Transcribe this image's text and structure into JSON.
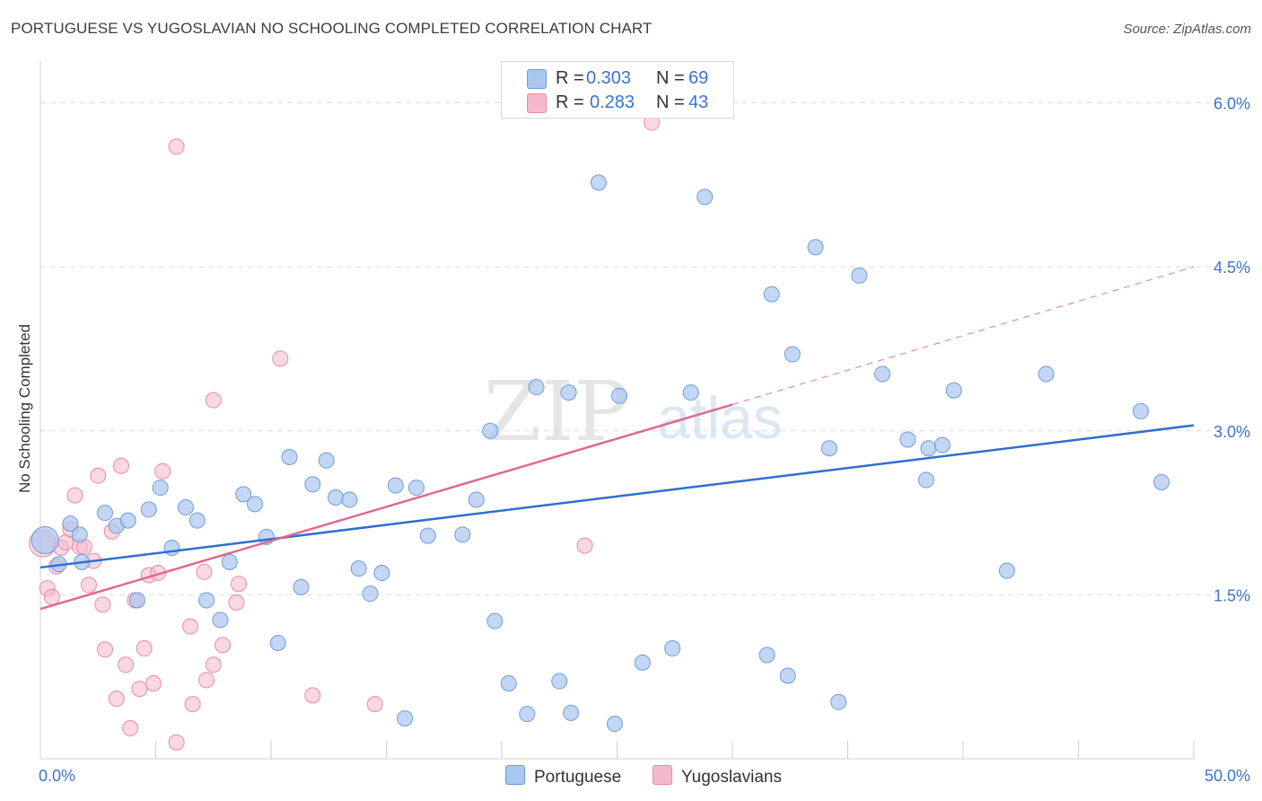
{
  "header": {
    "title": "PORTUGUESE VS YUGOSLAVIAN NO SCHOOLING COMPLETED CORRELATION CHART",
    "source": "Source: ZipAtlas.com"
  },
  "legend": {
    "rows": [
      {
        "r_label": "R =",
        "r_value": "0.303",
        "n_label": "N =",
        "n_value": "69",
        "color": "#a9c6f0"
      },
      {
        "r_label": "R =",
        "r_value": "0.283",
        "n_label": "N =",
        "n_value": "43",
        "color": "#f6b8cb"
      }
    ]
  },
  "bottom_legend": {
    "portuguese": "Portuguese",
    "yugoslavians": "Yugoslavians"
  },
  "watermark": {
    "zip": "ZIP",
    "atlas": "atlas"
  },
  "colors": {
    "portuguese_fill": "#a9c6f0",
    "portuguese_stroke": "#6f9bdc",
    "portuguese_line": "#2f6fd0",
    "yugoslavian_fill": "#f6b8cb",
    "yugoslavian_stroke": "#e889a8",
    "yugoslavian_line": "#e06892",
    "axis_label": "#3b74d0"
  },
  "chart_data": {
    "type": "scatter",
    "title": "PORTUGUESE VS YUGOSLAVIAN NO SCHOOLING COMPLETED CORRELATION CHART",
    "xlabel": "",
    "ylabel": "No Schooling Completed",
    "xlim": [
      0,
      50
    ],
    "ylim": [
      0,
      6.3
    ],
    "x_tick_labels": [
      "0.0%",
      "50.0%"
    ],
    "y_ticks": [
      1.5,
      3.0,
      4.5,
      6.0
    ],
    "y_tick_labels": [
      "1.5%",
      "3.0%",
      "4.5%",
      "6.0%"
    ],
    "grid": true,
    "legend_position": "top-center",
    "series": [
      {
        "name": "Portuguese",
        "trend": {
          "x": [
            0,
            50
          ],
          "y": [
            1.75,
            3.05
          ],
          "dashed_from_x": null
        },
        "points": [
          [
            0.2,
            2.0
          ],
          [
            0.8,
            1.78
          ],
          [
            1.3,
            2.15
          ],
          [
            1.7,
            2.05
          ],
          [
            1.8,
            1.8
          ],
          [
            2.8,
            2.25
          ],
          [
            3.3,
            2.13
          ],
          [
            3.8,
            2.18
          ],
          [
            4.2,
            1.45
          ],
          [
            4.7,
            2.28
          ],
          [
            5.2,
            2.48
          ],
          [
            5.7,
            1.93
          ],
          [
            6.3,
            2.3
          ],
          [
            6.8,
            2.18
          ],
          [
            7.2,
            1.45
          ],
          [
            7.8,
            1.27
          ],
          [
            8.2,
            1.8
          ],
          [
            8.8,
            2.42
          ],
          [
            9.3,
            2.33
          ],
          [
            9.8,
            2.03
          ],
          [
            10.3,
            1.06
          ],
          [
            10.8,
            2.76
          ],
          [
            11.3,
            1.57
          ],
          [
            11.8,
            2.51
          ],
          [
            12.4,
            2.73
          ],
          [
            12.8,
            2.39
          ],
          [
            13.4,
            2.37
          ],
          [
            13.8,
            1.74
          ],
          [
            14.3,
            1.51
          ],
          [
            14.8,
            1.7
          ],
          [
            15.4,
            2.5
          ],
          [
            15.8,
            0.37
          ],
          [
            16.3,
            2.48
          ],
          [
            16.8,
            2.04
          ],
          [
            18.3,
            2.05
          ],
          [
            18.9,
            2.37
          ],
          [
            19.5,
            3.0
          ],
          [
            19.7,
            1.26
          ],
          [
            20.3,
            0.69
          ],
          [
            21.1,
            0.41
          ],
          [
            21.5,
            3.4
          ],
          [
            22.5,
            0.71
          ],
          [
            22.9,
            3.35
          ],
          [
            23.0,
            0.42
          ],
          [
            24.2,
            5.27
          ],
          [
            24.9,
            0.32
          ],
          [
            25.1,
            3.32
          ],
          [
            26.1,
            0.88
          ],
          [
            27.4,
            1.01
          ],
          [
            28.2,
            3.35
          ],
          [
            28.8,
            5.14
          ],
          [
            31.5,
            0.95
          ],
          [
            31.7,
            4.25
          ],
          [
            32.4,
            0.76
          ],
          [
            32.6,
            3.7
          ],
          [
            33.6,
            4.68
          ],
          [
            34.2,
            2.84
          ],
          [
            34.6,
            0.52
          ],
          [
            35.5,
            4.42
          ],
          [
            36.5,
            3.52
          ],
          [
            37.6,
            2.92
          ],
          [
            38.4,
            2.55
          ],
          [
            38.5,
            2.84
          ],
          [
            39.1,
            2.87
          ],
          [
            39.6,
            3.37
          ],
          [
            41.9,
            1.72
          ],
          [
            43.6,
            3.52
          ],
          [
            47.7,
            3.18
          ],
          [
            48.6,
            2.53
          ]
        ]
      },
      {
        "name": "Yugoslavians",
        "trend": {
          "x": [
            0,
            30,
            50
          ],
          "y": [
            1.37,
            3.24,
            4.5
          ],
          "dashed_from_x": 30
        },
        "points": [
          [
            0.1,
            1.97
          ],
          [
            0.3,
            1.56
          ],
          [
            0.5,
            1.48
          ],
          [
            0.7,
            1.76
          ],
          [
            0.9,
            1.93
          ],
          [
            1.1,
            1.98
          ],
          [
            1.3,
            2.1
          ],
          [
            1.5,
            2.41
          ],
          [
            1.7,
            1.94
          ],
          [
            1.9,
            1.94
          ],
          [
            2.1,
            1.59
          ],
          [
            2.3,
            1.81
          ],
          [
            2.5,
            2.59
          ],
          [
            2.7,
            1.41
          ],
          [
            2.8,
            1.0
          ],
          [
            3.1,
            2.08
          ],
          [
            3.3,
            0.55
          ],
          [
            3.5,
            2.68
          ],
          [
            3.7,
            0.86
          ],
          [
            3.9,
            0.28
          ],
          [
            4.1,
            1.45
          ],
          [
            4.3,
            0.64
          ],
          [
            4.5,
            1.01
          ],
          [
            4.7,
            1.68
          ],
          [
            4.9,
            0.69
          ],
          [
            5.1,
            1.7
          ],
          [
            5.3,
            2.63
          ],
          [
            5.9,
            5.6
          ],
          [
            5.9,
            0.15
          ],
          [
            6.5,
            1.21
          ],
          [
            6.6,
            0.5
          ],
          [
            7.1,
            1.71
          ],
          [
            7.2,
            0.72
          ],
          [
            7.5,
            3.28
          ],
          [
            7.5,
            0.86
          ],
          [
            7.9,
            1.04
          ],
          [
            8.5,
            1.43
          ],
          [
            8.6,
            1.6
          ],
          [
            10.4,
            3.66
          ],
          [
            11.8,
            0.58
          ],
          [
            14.5,
            0.5
          ],
          [
            23.6,
            1.95
          ],
          [
            26.5,
            5.82
          ]
        ]
      }
    ]
  }
}
